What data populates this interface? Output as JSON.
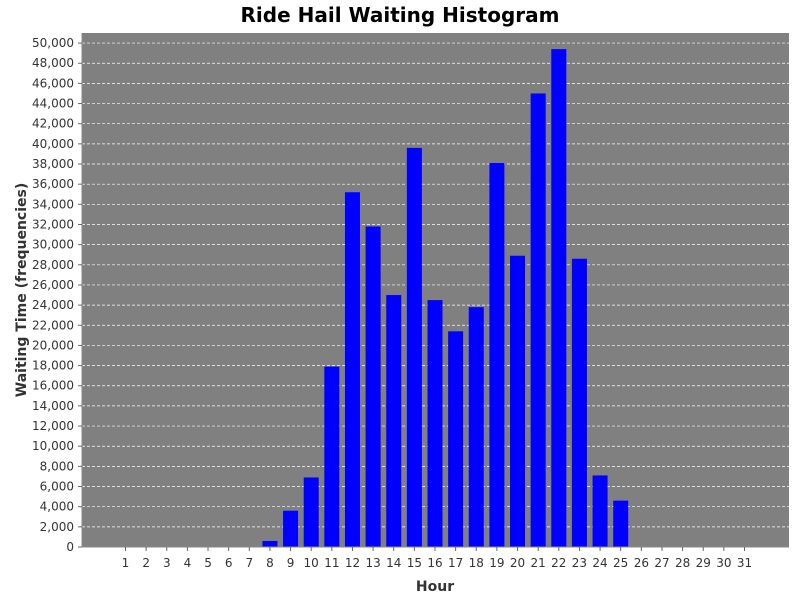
{
  "chart_data": {
    "type": "bar",
    "title": "Ride Hail Waiting Histogram",
    "xlabel": "Hour",
    "ylabel": "Waiting Time (frequencies)",
    "categories": [
      "1",
      "2",
      "3",
      "4",
      "5",
      "6",
      "7",
      "8",
      "9",
      "10",
      "11",
      "12",
      "13",
      "14",
      "15",
      "16",
      "17",
      "18",
      "19",
      "20",
      "21",
      "22",
      "23",
      "24",
      "25",
      "26",
      "27",
      "28",
      "29",
      "30",
      "31"
    ],
    "values": [
      0,
      0,
      0,
      0,
      0,
      0,
      0,
      600,
      3600,
      6900,
      17900,
      35200,
      31800,
      25000,
      39600,
      24500,
      21400,
      23800,
      38100,
      28900,
      45000,
      49400,
      28600,
      7100,
      4600,
      0,
      0,
      0,
      0,
      0,
      0
    ],
    "ylim": [
      0,
      51000
    ],
    "yticks": [
      0,
      2000,
      4000,
      6000,
      8000,
      10000,
      12000,
      14000,
      16000,
      18000,
      20000,
      22000,
      24000,
      26000,
      28000,
      30000,
      32000,
      34000,
      36000,
      38000,
      40000,
      42000,
      44000,
      46000,
      48000,
      50000
    ],
    "grid": true,
    "colors": {
      "bar": "#0000ff",
      "plot_background": "#808080",
      "gridline": "#ffffff"
    }
  }
}
